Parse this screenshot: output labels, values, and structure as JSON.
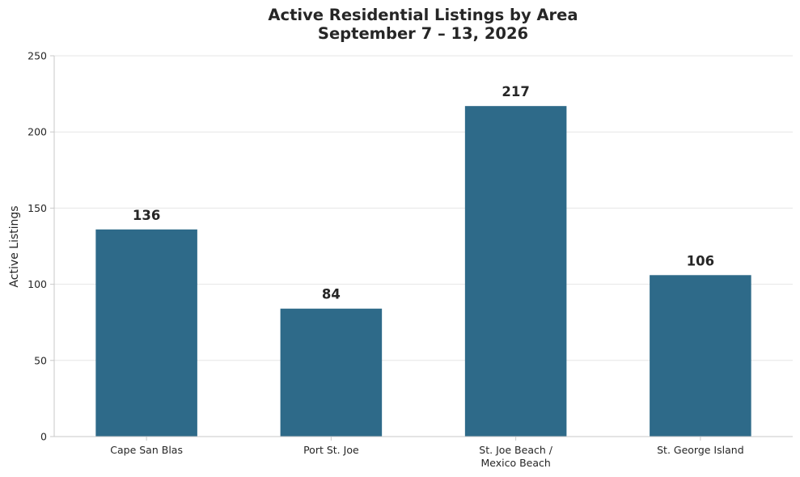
{
  "chart_data": {
    "type": "bar",
    "title": "Active Residential Listings by Area",
    "subtitle": "September 7 – 13, 2026",
    "xlabel": "",
    "ylabel": "Active Listings",
    "categories": [
      [
        "Cape San Blas"
      ],
      [
        "Port St. Joe"
      ],
      [
        "St. Joe Beach /",
        "Mexico Beach"
      ],
      [
        "St. George Island"
      ]
    ],
    "values": [
      136,
      84,
      217,
      106
    ],
    "value_labels": [
      "136",
      "84",
      "217",
      "106"
    ],
    "ylim": [
      0,
      250
    ],
    "yticks": [
      "0",
      "50",
      "100",
      "150",
      "200",
      "250"
    ],
    "grid": "horizontal",
    "legend": "none",
    "colors": {
      "bar": "#2e6a89",
      "grid": "#e6e6e6",
      "axis": "#c8c8c8",
      "text": "#262626"
    }
  }
}
